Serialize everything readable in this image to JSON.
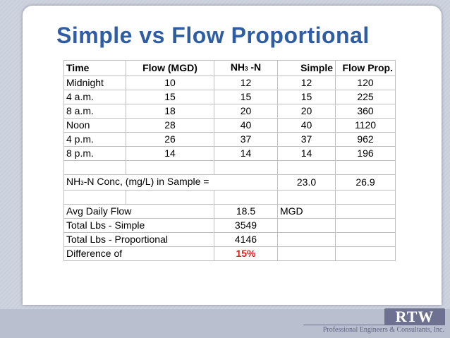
{
  "slide": {
    "title": "Simple vs Flow Proportional"
  },
  "table": {
    "headers": {
      "time": "Time",
      "flow": "Flow (MGD)",
      "nh3_prefix": "NH",
      "nh3_sub": "3",
      "nh3_suffix": " -N",
      "simple": "Simple",
      "flow_prop": "Flow Prop."
    },
    "rows": [
      {
        "time": "Midnight",
        "flow": "10",
        "nh3": "12",
        "simple": "12",
        "flow_prop": "120"
      },
      {
        "time": "4 a.m.",
        "flow": "15",
        "nh3": "15",
        "simple": "15",
        "flow_prop": "225"
      },
      {
        "time": "8 a.m.",
        "flow": "18",
        "nh3": "20",
        "simple": "20",
        "flow_prop": "360"
      },
      {
        "time": "Noon",
        "flow": "28",
        "nh3": "40",
        "simple": "40",
        "flow_prop": "1120"
      },
      {
        "time": "4 p.m.",
        "flow": "26",
        "nh3": "37",
        "simple": "37",
        "flow_prop": "962"
      },
      {
        "time": "8 p.m.",
        "flow": "14",
        "nh3": "14",
        "simple": "14",
        "flow_prop": "196"
      }
    ],
    "conc": {
      "label_prefix": "NH",
      "label_sub": "3",
      "label_suffix": "-N Conc, (mg/L) in Sample =",
      "simple": "23.0",
      "flow_prop": "26.9"
    },
    "summary": [
      {
        "label": "Avg Daily Flow",
        "value": "18.5",
        "unit": "MGD"
      },
      {
        "label": "Total Lbs - Simple",
        "value": "3549",
        "unit": ""
      },
      {
        "label": "Total Lbs - Proportional",
        "value": "4146",
        "unit": ""
      },
      {
        "label": "Difference of",
        "value": "15%",
        "unit": ""
      }
    ],
    "highlight_color": "#e02020"
  },
  "footer": {
    "logo": "RTW",
    "tagline": "Professional Engineers & Consultants, Inc."
  }
}
